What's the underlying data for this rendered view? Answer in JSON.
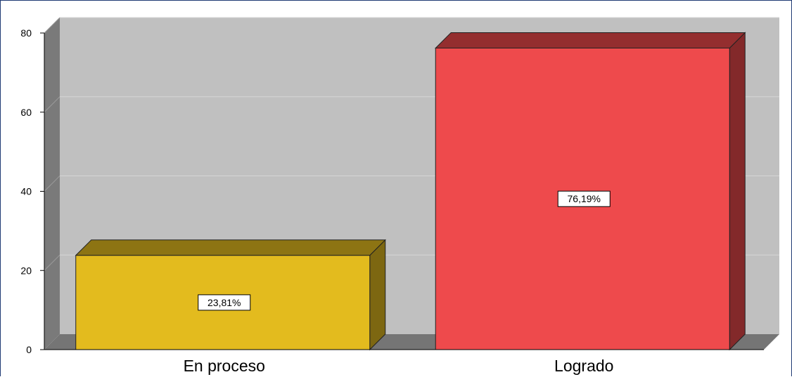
{
  "chart_data": {
    "type": "bar",
    "title": "",
    "xlabel": "",
    "ylabel": "",
    "ylim": [
      0,
      80
    ],
    "yticks": [
      0,
      20,
      40,
      60,
      80
    ],
    "grid": true,
    "style": "3d",
    "categories": [
      "En proceso",
      "Logrado"
    ],
    "values": [
      23.81,
      76.19
    ],
    "data_labels": [
      "23,81%",
      "76,19%"
    ],
    "colors": [
      "#e3bb1e",
      "#ee4a4c"
    ],
    "background_color": "#c0c0c0"
  }
}
